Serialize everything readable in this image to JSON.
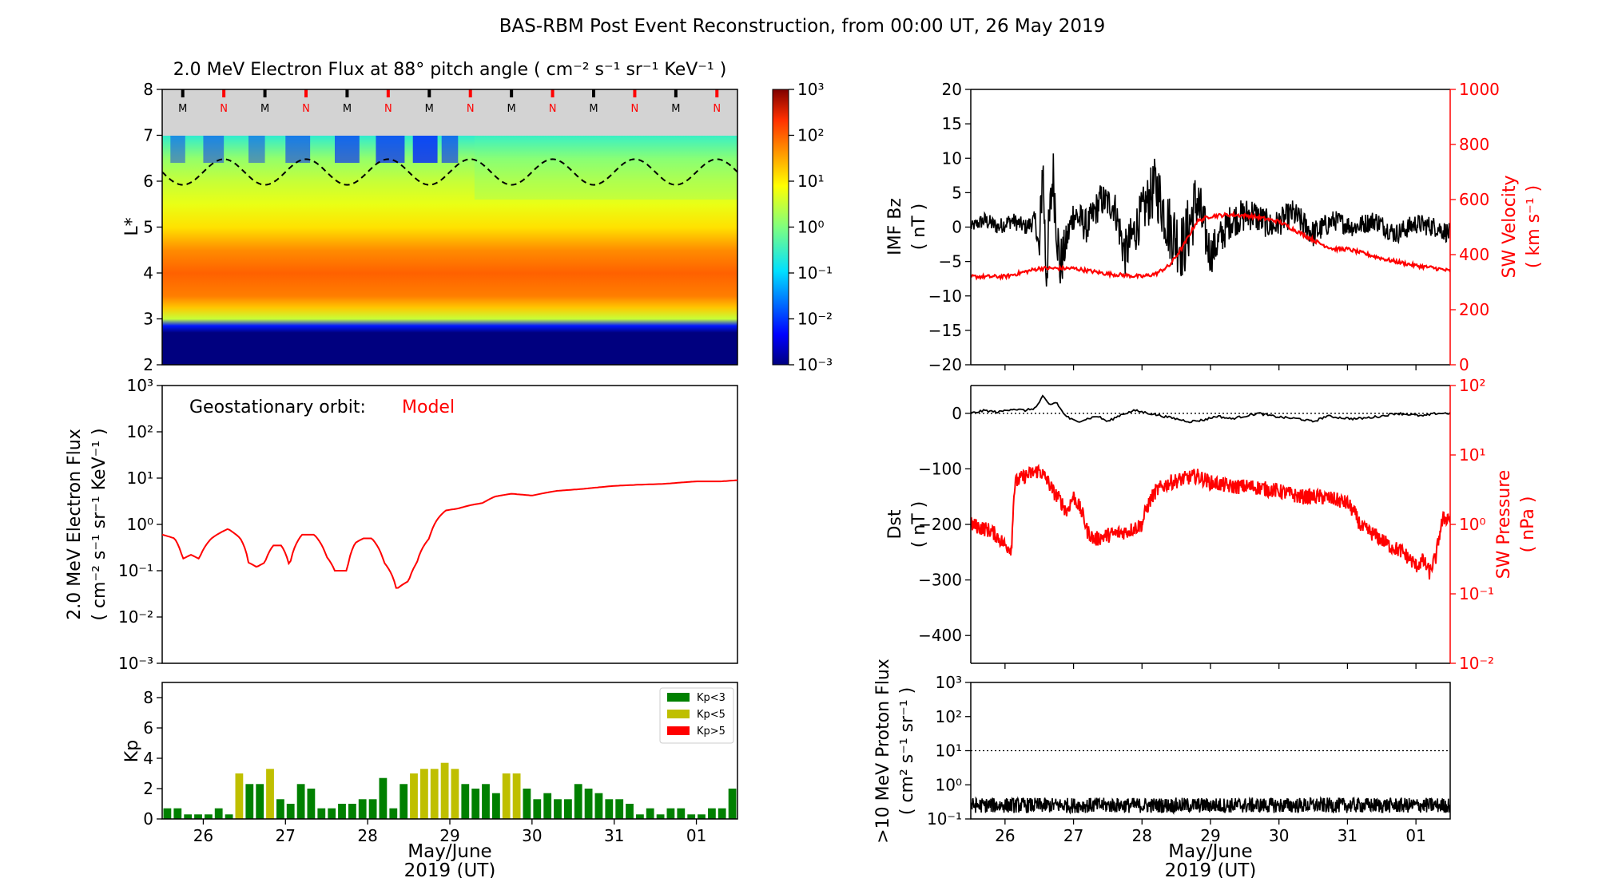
{
  "page": {
    "title": "BAS-RBM Post Event Reconstruction, from 00:00 UT, 26 May 2019",
    "x_axis_label_line1": "May/June",
    "x_axis_label_line2": "2019 (UT)",
    "day_labels": [
      "26",
      "27",
      "28",
      "29",
      "30",
      "31",
      "01"
    ]
  },
  "colors": {
    "red": "#ff0000",
    "black": "#000000",
    "kp_green": "#008000",
    "kp_yellow": "#bfbf00",
    "kp_red": "#ff0000",
    "mlt_band": "#d3d3d3"
  },
  "chart_data": [
    {
      "id": "flux_map",
      "type": "heatmap",
      "title": "2.0 MeV Electron Flux at 88° pitch angle ( cm⁻² s⁻¹ sr⁻¹ KeV⁻¹ )",
      "ylabel": "L*",
      "ylim": [
        2,
        8
      ],
      "yticks": [
        "2",
        "3",
        "4",
        "5",
        "6",
        "7",
        "8"
      ],
      "xlim_days": [
        -0.5,
        6.5
      ],
      "colorbar": {
        "scale": "log",
        "range": [
          0.001,
          1000
        ],
        "tick_labels": [
          "10⁻³",
          "10⁻²",
          "10⁻¹",
          "10⁰",
          "10¹",
          "10²",
          "10³"
        ]
      },
      "mlt_markers": {
        "labels": [
          "M",
          "N",
          "M",
          "N",
          "M",
          "N",
          "M",
          "N",
          "M",
          "N",
          "M",
          "N",
          "M",
          "N"
        ],
        "times_days": [
          -0.25,
          0.25,
          0.75,
          1.25,
          1.75,
          2.25,
          2.75,
          3.25,
          3.75,
          4.25,
          4.75,
          5.25,
          5.75,
          6.25
        ],
        "colors": [
          "black",
          "red",
          "black",
          "red",
          "black",
          "red",
          "black",
          "red",
          "black",
          "red",
          "black",
          "red",
          "black",
          "red"
        ]
      },
      "geo_L_dashed": {
        "mean": 6.2,
        "amplitude": 0.28,
        "period_days": 1.0
      },
      "flux_profile_by_L": [
        {
          "L": 2.0,
          "log10_flux": -3.0
        },
        {
          "L": 2.7,
          "log10_flux": -3.0
        },
        {
          "L": 2.85,
          "log10_flux": -2.2
        },
        {
          "L": 3.0,
          "log10_flux": 0.5
        },
        {
          "L": 3.25,
          "log10_flux": 1.3
        },
        {
          "L": 3.5,
          "log10_flux": 1.8
        },
        {
          "L": 4.0,
          "log10_flux": 2.0
        },
        {
          "L": 4.5,
          "log10_flux": 1.7
        },
        {
          "L": 5.0,
          "log10_flux": 1.1
        },
        {
          "L": 5.5,
          "log10_flux": 0.75
        },
        {
          "L": 6.0,
          "log10_flux": 0.5
        },
        {
          "L": 6.5,
          "log10_flux": 0.15
        },
        {
          "L": 7.0,
          "log10_flux": -0.6
        }
      ]
    },
    {
      "id": "geo_flux",
      "type": "line",
      "annotation_label": "Geostationary orbit:",
      "annotation_value": "Model",
      "ylabel_line1": "2.0 MeV Electron Flux",
      "ylabel_line2": "( cm⁻² s⁻¹ sr⁻¹ KeV⁻¹ )",
      "yscale": "log",
      "ylim": [
        0.001,
        1000
      ],
      "ytick_labels": [
        "10⁻³",
        "10⁻²",
        "10⁻¹",
        "10⁰",
        "10¹",
        "10²",
        "10³"
      ],
      "series": [
        {
          "name": "Model",
          "x_days": [
            -0.5,
            -0.35,
            -0.25,
            -0.15,
            -0.05,
            0.1,
            0.3,
            0.45,
            0.55,
            0.65,
            0.75,
            0.85,
            0.95,
            1.05,
            1.2,
            1.35,
            1.5,
            1.6,
            1.75,
            1.85,
            1.95,
            2.05,
            2.2,
            2.35,
            2.5,
            2.6,
            2.75,
            2.85,
            2.95,
            3.1,
            3.25,
            3.4,
            3.55,
            3.75,
            4.0,
            4.3,
            4.6,
            5.0,
            5.3,
            5.6,
            5.8,
            6.0,
            6.3,
            6.5
          ],
          "values": [
            0.6,
            0.5,
            0.18,
            0.22,
            0.18,
            0.5,
            0.8,
            0.5,
            0.15,
            0.12,
            0.15,
            0.35,
            0.35,
            0.12,
            0.6,
            0.6,
            0.2,
            0.1,
            0.1,
            0.4,
            0.5,
            0.5,
            0.15,
            0.04,
            0.06,
            0.15,
            0.5,
            1.3,
            2.0,
            2.2,
            2.6,
            2.9,
            4.0,
            4.6,
            4.2,
            5.3,
            5.8,
            6.8,
            7.2,
            7.5,
            8.0,
            8.5,
            8.5,
            9.0
          ]
        }
      ]
    },
    {
      "id": "kp",
      "type": "bar",
      "ylabel": "Kp",
      "ylim": [
        0,
        9
      ],
      "yticks": [
        "0",
        "2",
        "4",
        "6",
        "8"
      ],
      "legend": [
        "Kp<3",
        "Kp<5",
        "Kp>5"
      ],
      "legend_position": "top-right",
      "start_day": -0.5,
      "bin_days": 0.125,
      "values": [
        0.7,
        0.7,
        0.3,
        0.3,
        0.3,
        0.7,
        0.3,
        3.0,
        2.3,
        2.3,
        3.3,
        1.3,
        1.0,
        2.3,
        2.0,
        0.7,
        0.7,
        1.0,
        1.0,
        1.3,
        1.3,
        2.7,
        0.7,
        2.3,
        3.0,
        3.3,
        3.3,
        3.7,
        3.3,
        2.3,
        2.0,
        2.3,
        1.7,
        3.0,
        3.0,
        2.0,
        1.3,
        1.7,
        1.3,
        1.3,
        2.3,
        2.0,
        1.7,
        1.3,
        1.3,
        1.0,
        0.3,
        0.7,
        0.3,
        0.7,
        0.7,
        0.3,
        0.3,
        0.7,
        0.7,
        2.0
      ]
    },
    {
      "id": "imf_bz_sw_velocity",
      "type": "line",
      "ylabel_line1": "IMF Bz",
      "ylabel_line2": "( nT )",
      "ylim": [
        -20,
        20
      ],
      "yticks": [
        "−20",
        "−15",
        "−10",
        "−5",
        "0",
        "5",
        "10",
        "15",
        "20"
      ],
      "right_ylabel_line1": "SW Velocity",
      "right_ylabel_line2": "( km s⁻¹ )",
      "right_ylim": [
        0,
        1000
      ],
      "right_yticks": [
        "0",
        "200",
        "400",
        "600",
        "800",
        "1000"
      ],
      "series": [
        {
          "name": "IMF Bz",
          "x_days": [
            -0.5,
            -0.3,
            -0.1,
            0.1,
            0.3,
            0.45,
            0.5,
            0.55,
            0.6,
            0.7,
            0.8,
            0.9,
            1.0,
            1.2,
            1.4,
            1.6,
            1.75,
            2.0,
            2.2,
            2.4,
            2.6,
            2.8,
            3.0,
            3.3,
            3.6,
            3.9,
            4.2,
            4.5,
            4.8,
            5.1,
            5.4,
            5.7,
            6.0,
            6.3,
            6.5
          ],
          "values": [
            0,
            1,
            0,
            1,
            0,
            1,
            -5,
            10,
            -7,
            8,
            -6,
            -2,
            2,
            0,
            4,
            3,
            -4,
            2,
            6,
            0,
            -3,
            4,
            -4,
            1,
            2,
            0,
            2,
            -1,
            1,
            0,
            1,
            -1,
            0.5,
            0,
            -1
          ],
          "noise": [
            0.8,
            1.2,
            1.2,
            1.2,
            1.2,
            1.5,
            4.5,
            4.5,
            4.5,
            4.5,
            4.5,
            2.5,
            2.5,
            2.5,
            2.5,
            2.5,
            3.5,
            3.5,
            4.5,
            5.0,
            5.0,
            5.0,
            3.0,
            2.5,
            2.5,
            2.0,
            2.0,
            2.0,
            1.5,
            1.5,
            1.5,
            1.5,
            1.5,
            1.5,
            1.5
          ]
        },
        {
          "name": "SW Velocity",
          "x_days": [
            -0.5,
            0.0,
            0.5,
            1.0,
            1.5,
            2.0,
            2.2,
            2.4,
            2.6,
            2.8,
            3.0,
            3.3,
            3.6,
            4.0,
            4.3,
            4.6,
            4.8,
            5.0,
            5.3,
            5.6,
            6.0,
            6.3,
            6.5
          ],
          "values": [
            320,
            320,
            350,
            350,
            330,
            320,
            330,
            360,
            430,
            520,
            540,
            545,
            540,
            520,
            480,
            440,
            420,
            420,
            400,
            380,
            360,
            350,
            340
          ]
        }
      ]
    },
    {
      "id": "dst_sw_pressure",
      "type": "line",
      "ylabel_line1": "Dst",
      "ylabel_line2": "( nT )",
      "ylim": [
        -450,
        50
      ],
      "yticks": [
        "−400",
        "−300",
        "−200",
        "−100",
        "0"
      ],
      "right_ylabel_line1": "SW Pressure",
      "right_ylabel_line2": "( nPa )",
      "right_yscale": "log",
      "right_ylim": [
        0.01,
        100
      ],
      "right_ytick_labels": [
        "10⁻²",
        "10⁻¹",
        "10⁰",
        "10¹",
        "10²"
      ],
      "series": [
        {
          "name": "Dst",
          "x_days": [
            -0.5,
            -0.3,
            -0.1,
            0.1,
            0.3,
            0.45,
            0.55,
            0.65,
            0.75,
            0.85,
            0.95,
            1.05,
            1.2,
            1.35,
            1.5,
            1.7,
            1.9,
            2.1,
            2.3,
            2.5,
            2.7,
            2.9,
            3.1,
            3.3,
            3.5,
            3.7,
            3.9,
            4.1,
            4.3,
            4.5,
            4.7,
            4.9,
            5.1,
            5.3,
            5.5,
            5.7,
            5.9,
            6.1,
            6.3,
            6.5
          ],
          "values": [
            0,
            5,
            2,
            8,
            5,
            10,
            30,
            15,
            20,
            0,
            -10,
            -15,
            -10,
            -5,
            -15,
            -2,
            5,
            0,
            -5,
            -10,
            -15,
            -12,
            -5,
            -10,
            -5,
            0,
            -5,
            -8,
            -10,
            -15,
            -5,
            -8,
            -10,
            -8,
            -5,
            0,
            -2,
            -5,
            0,
            0
          ]
        },
        {
          "name": "SW Pressure",
          "x_days": [
            -0.5,
            -0.2,
            0.0,
            0.1,
            0.15,
            0.3,
            0.5,
            0.7,
            0.9,
            1.0,
            1.2,
            1.3,
            1.5,
            1.8,
            2.0,
            2.2,
            2.4,
            2.6,
            2.8,
            3.0,
            3.3,
            3.6,
            4.0,
            4.3,
            4.6,
            4.8,
            5.0,
            5.2,
            5.4,
            5.6,
            5.8,
            6.0,
            6.1,
            6.2,
            6.3,
            6.4,
            6.5
          ],
          "values": [
            1.0,
            0.8,
            0.5,
            0.45,
            4.0,
            5.0,
            6.0,
            3.0,
            1.5,
            2.5,
            0.8,
            0.6,
            0.7,
            0.8,
            1.0,
            3.0,
            4.0,
            4.5,
            5.0,
            4.0,
            3.5,
            3.5,
            3.0,
            2.5,
            2.5,
            2.3,
            2.0,
            0.9,
            0.7,
            0.5,
            0.4,
            0.25,
            0.3,
            0.2,
            0.35,
            1.2,
            1.3
          ]
        }
      ],
      "reference_line_y": 0
    },
    {
      "id": "proton_flux",
      "type": "line",
      "ylabel_line1": ">10 MeV Proton Flux",
      "ylabel_line2": "( cm² s⁻¹ sr⁻¹ )",
      "yscale": "log",
      "ylim": [
        0.1,
        1000
      ],
      "ytick_labels": [
        "10⁻¹",
        "10⁰",
        "10¹",
        "10²",
        "10³"
      ],
      "threshold_line": 10,
      "series": [
        {
          "name": ">10 MeV Proton Flux",
          "x_days": [
            -0.5,
            6.5
          ],
          "values": [
            0.25,
            0.25
          ]
        }
      ]
    }
  ]
}
